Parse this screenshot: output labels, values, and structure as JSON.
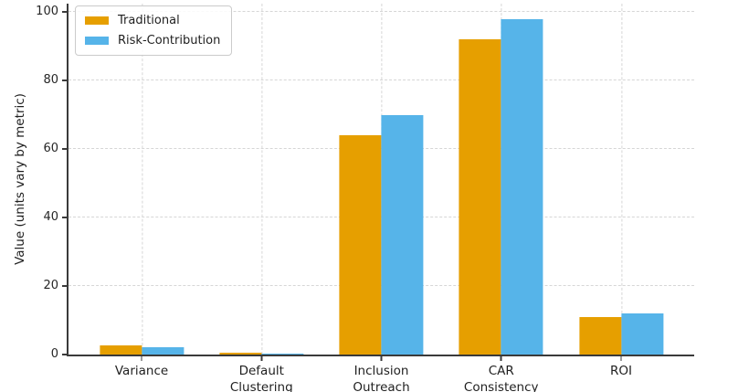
{
  "chart_data": {
    "type": "bar",
    "title": "",
    "xlabel": "",
    "ylabel": "Value (units vary by metric)",
    "categories": [
      "Variance",
      "Default Clustering",
      "Inclusion Outreach",
      "CAR Consistency",
      "ROI"
    ],
    "categories_display": [
      "Variance",
      "Default\nClustering",
      "Inclusion\nOutreach",
      "CAR\nConsistency",
      "ROI"
    ],
    "series": [
      {
        "name": "Traditional",
        "color": "#E69F00",
        "values": [
          2.8,
          0.5,
          64.0,
          92.0,
          11.0
        ]
      },
      {
        "name": "Risk-Contribution",
        "color": "#56B4E9",
        "values": [
          2.2,
          0.3,
          70.0,
          98.0,
          12.0
        ]
      }
    ],
    "yticks": [
      0,
      20,
      40,
      60,
      80,
      100
    ],
    "ylim": [
      0,
      102.4
    ],
    "xlim": [
      -0.61,
      4.61
    ],
    "grid": true,
    "grid_style": "dashed",
    "legend_position": "upper left",
    "colors": {
      "traditional": "#E69F00",
      "risk_contribution": "#56B4E9",
      "grid": "#d6d6d6",
      "axis": "#3a3a3a",
      "text": "#1f1f1f",
      "background": "#ffffff"
    }
  }
}
